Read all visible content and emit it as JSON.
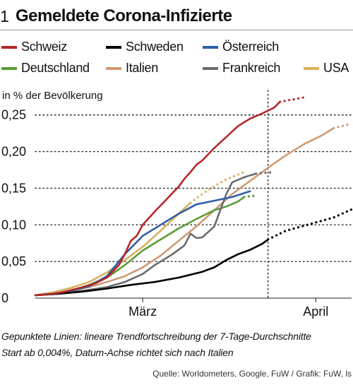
{
  "figure": {
    "number": "1",
    "title": "Gemeldete Corona-Infizierte"
  },
  "legend": [
    {
      "name": "Schweiz",
      "color": "#b5272b"
    },
    {
      "name": "Schweden",
      "color": "#000000"
    },
    {
      "name": "Österreich",
      "color": "#2f5fa8"
    },
    {
      "name": "Deutschland",
      "color": "#5d9b36"
    },
    {
      "name": "Italien",
      "color": "#d09a72"
    },
    {
      "name": "Frankreich",
      "color": "#6b6b6b"
    },
    {
      "name": "USA",
      "color": "#d8b25e"
    }
  ],
  "footnotes": {
    "line1": "Gepunktete Linien: lineare Trendfortschreibung der 7-Tage-Durchschnitte",
    "line2": "Start ab 0,004%, Datum-Achse richtet sich nach Italien"
  },
  "source": "Quelle: Worldometers, Google, FuW / Grafik: FuW, ls",
  "chart_data": {
    "type": "line",
    "title": "Gemeldete Corona-Infizierte",
    "ylabel": "in % der Bevölkerung",
    "xlabel": "",
    "ylim": [
      0,
      0.27
    ],
    "xlim": [
      0,
      53
    ],
    "yticks": [
      {
        "value": 0,
        "label": "0"
      },
      {
        "value": 0.05,
        "label": "0,05"
      },
      {
        "value": 0.1,
        "label": "0,10"
      },
      {
        "value": 0.15,
        "label": "0,15"
      },
      {
        "value": 0.2,
        "label": "0,20"
      },
      {
        "value": 0.25,
        "label": "0,25"
      }
    ],
    "xticks": [
      {
        "value": 18,
        "label": "März"
      },
      {
        "value": 47,
        "label": "April"
      }
    ],
    "today_marker": 39,
    "grid": "horizontal dotted",
    "series": [
      {
        "name": "Schweiz",
        "color": "#b5272b",
        "solid": [
          [
            0,
            0.004
          ],
          [
            2,
            0.005
          ],
          [
            4,
            0.007
          ],
          [
            6,
            0.011
          ],
          [
            8,
            0.015
          ],
          [
            10,
            0.02
          ],
          [
            12,
            0.028
          ],
          [
            14,
            0.045
          ],
          [
            15,
            0.06
          ],
          [
            16,
            0.078
          ],
          [
            17,
            0.085
          ],
          [
            18,
            0.1
          ],
          [
            20,
            0.118
          ],
          [
            22,
            0.135
          ],
          [
            24,
            0.152
          ],
          [
            25,
            0.163
          ],
          [
            26,
            0.172
          ],
          [
            27,
            0.182
          ],
          [
            28,
            0.188
          ],
          [
            30,
            0.205
          ],
          [
            32,
            0.22
          ],
          [
            34,
            0.235
          ],
          [
            36,
            0.245
          ],
          [
            38,
            0.252
          ],
          [
            40,
            0.26
          ],
          [
            41,
            0.268
          ]
        ],
        "trend": [
          [
            41,
            0.268
          ],
          [
            45,
            0.274
          ]
        ]
      },
      {
        "name": "Schweden",
        "color": "#000000",
        "solid": [
          [
            0,
            0.004
          ],
          [
            4,
            0.006
          ],
          [
            8,
            0.009
          ],
          [
            12,
            0.013
          ],
          [
            16,
            0.018
          ],
          [
            20,
            0.022
          ],
          [
            24,
            0.028
          ],
          [
            28,
            0.036
          ],
          [
            30,
            0.042
          ],
          [
            32,
            0.052
          ],
          [
            34,
            0.06
          ],
          [
            36,
            0.066
          ],
          [
            38,
            0.074
          ],
          [
            39,
            0.08
          ]
        ],
        "trend": [
          [
            39,
            0.08
          ],
          [
            42,
            0.092
          ],
          [
            46,
            0.101
          ],
          [
            50,
            0.11
          ],
          [
            53,
            0.121
          ]
        ]
      },
      {
        "name": "Österreich",
        "color": "#2f5fa8",
        "solid": [
          [
            0,
            0.004
          ],
          [
            3,
            0.006
          ],
          [
            6,
            0.01
          ],
          [
            9,
            0.016
          ],
          [
            12,
            0.03
          ],
          [
            15,
            0.06
          ],
          [
            18,
            0.085
          ],
          [
            21,
            0.1
          ],
          [
            24,
            0.115
          ],
          [
            27,
            0.128
          ],
          [
            30,
            0.133
          ],
          [
            33,
            0.138
          ],
          [
            36,
            0.146
          ]
        ],
        "trend": []
      },
      {
        "name": "Deutschland",
        "color": "#5d9b36",
        "solid": [
          [
            0,
            0.004
          ],
          [
            3,
            0.006
          ],
          [
            6,
            0.01
          ],
          [
            9,
            0.018
          ],
          [
            12,
            0.028
          ],
          [
            15,
            0.045
          ],
          [
            18,
            0.065
          ],
          [
            21,
            0.08
          ],
          [
            24,
            0.095
          ],
          [
            27,
            0.108
          ],
          [
            30,
            0.12
          ],
          [
            32,
            0.125
          ],
          [
            34,
            0.132
          ],
          [
            35,
            0.138
          ]
        ],
        "trend": [
          [
            35,
            0.138
          ],
          [
            37,
            0.14
          ]
        ]
      },
      {
        "name": "Italien",
        "color": "#d09a72",
        "solid": [
          [
            0,
            0.004
          ],
          [
            3,
            0.006
          ],
          [
            6,
            0.01
          ],
          [
            9,
            0.015
          ],
          [
            12,
            0.022
          ],
          [
            15,
            0.03
          ],
          [
            18,
            0.042
          ],
          [
            21,
            0.058
          ],
          [
            24,
            0.078
          ],
          [
            27,
            0.098
          ],
          [
            30,
            0.12
          ],
          [
            33,
            0.142
          ],
          [
            36,
            0.16
          ],
          [
            39,
            0.178
          ],
          [
            42,
            0.195
          ],
          [
            45,
            0.21
          ],
          [
            48,
            0.222
          ],
          [
            50,
            0.232
          ]
        ],
        "trend": [
          [
            50,
            0.232
          ],
          [
            53,
            0.238
          ]
        ]
      },
      {
        "name": "Frankreich",
        "color": "#6b6b6b",
        "solid": [
          [
            0,
            0.004
          ],
          [
            4,
            0.006
          ],
          [
            8,
            0.01
          ],
          [
            12,
            0.015
          ],
          [
            15,
            0.022
          ],
          [
            18,
            0.033
          ],
          [
            20,
            0.045
          ],
          [
            22,
            0.055
          ],
          [
            23,
            0.06
          ],
          [
            25,
            0.072
          ],
          [
            26,
            0.088
          ],
          [
            27,
            0.082
          ],
          [
            28,
            0.083
          ],
          [
            30,
            0.098
          ],
          [
            31,
            0.12
          ],
          [
            32,
            0.142
          ],
          [
            33,
            0.158
          ],
          [
            35,
            0.165
          ],
          [
            37,
            0.17
          ]
        ],
        "trend": [
          [
            37,
            0.17
          ],
          [
            40,
            0.172
          ]
        ]
      },
      {
        "name": "USA",
        "color": "#d8b25e",
        "solid": [
          [
            0,
            0.004
          ],
          [
            3,
            0.008
          ],
          [
            6,
            0.014
          ],
          [
            9,
            0.022
          ],
          [
            12,
            0.035
          ],
          [
            15,
            0.052
          ],
          [
            18,
            0.07
          ],
          [
            21,
            0.092
          ],
          [
            24,
            0.115
          ],
          [
            26,
            0.13
          ]
        ],
        "trend": [
          [
            26,
            0.13
          ],
          [
            29,
            0.148
          ],
          [
            32,
            0.162
          ],
          [
            35,
            0.172
          ]
        ]
      }
    ]
  }
}
